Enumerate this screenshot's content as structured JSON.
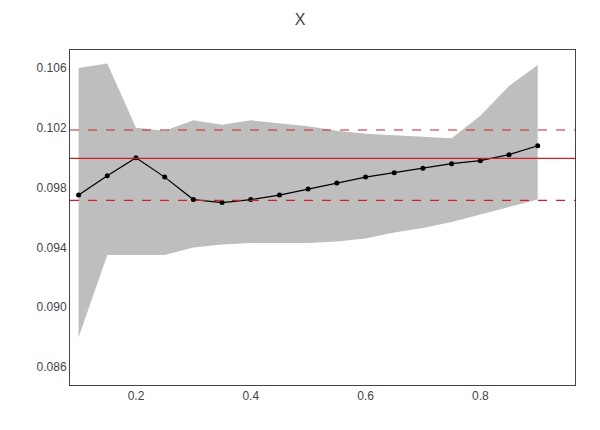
{
  "chart_data": {
    "type": "line",
    "title": "X",
    "x": [
      0.1,
      0.15,
      0.2,
      0.25,
      0.3,
      0.35,
      0.4,
      0.45,
      0.5,
      0.55,
      0.6,
      0.65,
      0.7,
      0.75,
      0.8,
      0.85,
      0.9
    ],
    "series": [
      {
        "type": "area",
        "color": "#bebebe",
        "upper": [
          0.106,
          0.1063,
          0.102,
          0.1018,
          0.1025,
          0.1022,
          0.1025,
          0.1023,
          0.1021,
          0.1018,
          0.1016,
          0.1015,
          0.1014,
          0.1013,
          0.1028,
          0.1048,
          0.1062
        ],
        "lower": [
          0.088,
          0.0935,
          0.0935,
          0.0935,
          0.094,
          0.0942,
          0.0943,
          0.0943,
          0.0943,
          0.0944,
          0.0946,
          0.095,
          0.0953,
          0.0957,
          0.0962,
          0.0967,
          0.0972
        ]
      },
      {
        "type": "line",
        "color": "#000000",
        "marker": "dot",
        "values": [
          0.0975,
          0.0988,
          0.1,
          0.0987,
          0.0972,
          0.097,
          0.0972,
          0.0975,
          0.0979,
          0.0983,
          0.0987,
          0.099,
          0.0993,
          0.0996,
          0.0998,
          0.1002,
          0.1008
        ]
      }
    ],
    "hlines": [
      {
        "value": 0.09995,
        "color": "#cc2222",
        "line_style": "solid"
      },
      {
        "value": 0.10185,
        "color": "#cc2222",
        "line_style": "dashed"
      },
      {
        "value": 0.09715,
        "color": "#cc2222",
        "line_style": "dashed"
      }
    ],
    "xlim": [
      0.085,
      0.965
    ],
    "ylim": [
      0.0848,
      0.1072
    ],
    "xticks": [
      0.2,
      0.4,
      0.6,
      0.8
    ],
    "yticks": [
      0.086,
      {
        "value": 0.09,
        "label": "0.090"
      },
      0.094,
      0.098,
      0.102,
      0.106
    ],
    "grid": false
  }
}
